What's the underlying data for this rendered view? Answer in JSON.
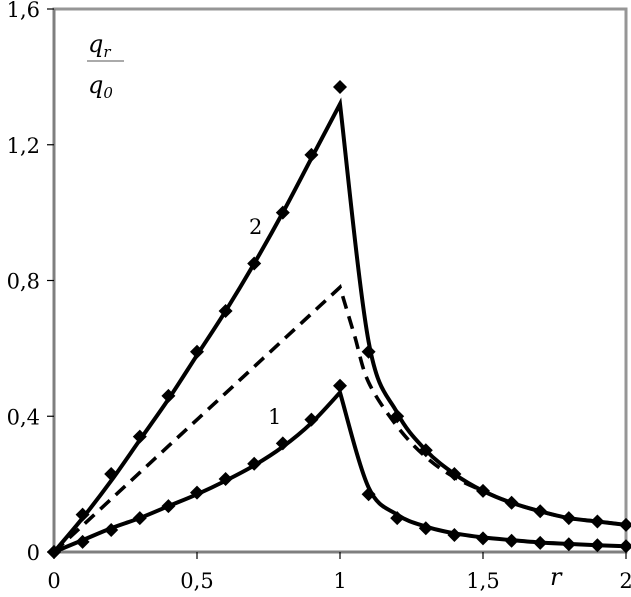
{
  "chart_data": {
    "type": "line",
    "title": "",
    "xlabel": "r",
    "ylabel": "q_r / q_0",
    "ylabel_numerator": "q",
    "ylabel_numerator_sub": "r",
    "ylabel_denominator": "q",
    "ylabel_denominator_sub": "0",
    "xlim": [
      0,
      2
    ],
    "ylim": [
      0,
      1.6
    ],
    "x_ticks": [
      0,
      0.5,
      1,
      1.5,
      2
    ],
    "x_tick_labels": [
      "0",
      "0,5",
      "1",
      "1,5",
      "2"
    ],
    "y_ticks": [
      0,
      0.4,
      0.8,
      1.2,
      1.6
    ],
    "y_tick_labels": [
      "0",
      "0,4",
      "0,8",
      "1,2",
      "1,6"
    ],
    "grid": false,
    "legend": "none (inline curve labels)",
    "annotations": [
      {
        "text": "1",
        "x": 0.75,
        "y": 0.4
      },
      {
        "text": "2",
        "x": 0.69,
        "y": 0.96
      }
    ],
    "series": [
      {
        "name": "2 (markers)",
        "style": "markers-diamond",
        "x": [
          0,
          0.1,
          0.2,
          0.3,
          0.4,
          0.5,
          0.6,
          0.7,
          0.8,
          0.9,
          1.0,
          1.1,
          1.2,
          1.3,
          1.4,
          1.5,
          1.6,
          1.7,
          1.8,
          1.9,
          2.0
        ],
        "values": [
          0,
          0.11,
          0.23,
          0.34,
          0.46,
          0.59,
          0.71,
          0.85,
          1.0,
          1.17,
          1.37,
          0.59,
          0.4,
          0.3,
          0.23,
          0.18,
          0.145,
          0.12,
          0.1,
          0.09,
          0.08
        ]
      },
      {
        "name": "2 (curve)",
        "style": "solid",
        "x": [
          0,
          0.1,
          0.2,
          0.3,
          0.4,
          0.5,
          0.6,
          0.7,
          0.8,
          0.9,
          1.0,
          1.1,
          1.2,
          1.3,
          1.4,
          1.5,
          1.6,
          1.7,
          1.8,
          1.9,
          2.0
        ],
        "values": [
          0,
          0.1,
          0.21,
          0.33,
          0.45,
          0.58,
          0.71,
          0.85,
          1.0,
          1.16,
          1.32,
          0.62,
          0.41,
          0.3,
          0.23,
          0.18,
          0.145,
          0.12,
          0.1,
          0.09,
          0.08
        ]
      },
      {
        "name": "1 (markers)",
        "style": "markers-diamond",
        "x": [
          0,
          0.1,
          0.2,
          0.3,
          0.4,
          0.5,
          0.6,
          0.7,
          0.8,
          0.9,
          1.0,
          1.1,
          1.2,
          1.3,
          1.4,
          1.5,
          1.6,
          1.7,
          1.8,
          1.9,
          2.0
        ],
        "values": [
          0,
          0.03,
          0.065,
          0.1,
          0.135,
          0.175,
          0.215,
          0.26,
          0.32,
          0.39,
          0.49,
          0.17,
          0.1,
          0.07,
          0.05,
          0.04,
          0.033,
          0.027,
          0.023,
          0.02,
          0.017
        ]
      },
      {
        "name": "1 (curve)",
        "style": "solid",
        "x": [
          0,
          0.1,
          0.2,
          0.3,
          0.4,
          0.5,
          0.6,
          0.7,
          0.8,
          0.9,
          1.0,
          1.1,
          1.2,
          1.3,
          1.4,
          1.5,
          1.6,
          1.7,
          1.8,
          1.9,
          2.0
        ],
        "values": [
          0,
          0.035,
          0.07,
          0.1,
          0.135,
          0.17,
          0.21,
          0.255,
          0.31,
          0.38,
          0.47,
          0.19,
          0.11,
          0.075,
          0.055,
          0.043,
          0.035,
          0.028,
          0.024,
          0.02,
          0.017
        ]
      },
      {
        "name": "dashed",
        "style": "dashed",
        "x": [
          0,
          0.2,
          0.4,
          0.6,
          0.8,
          1.0,
          1.05,
          1.1,
          1.2,
          1.3,
          1.4,
          1.5,
          1.6,
          1.7,
          1.8,
          1.9,
          2.0
        ],
        "values": [
          0,
          0.156,
          0.312,
          0.468,
          0.624,
          0.78,
          0.64,
          0.5,
          0.37,
          0.28,
          0.22,
          0.18,
          0.145,
          0.12,
          0.1,
          0.09,
          0.08
        ]
      }
    ]
  },
  "axes": {
    "x_label": "r",
    "y_label_num": "q",
    "y_label_num_sub": "r",
    "y_label_den": "q",
    "y_label_den_sub": "0"
  },
  "colors": {
    "plot_border": "#969696",
    "axis_line": "#7f7f7f",
    "series": "#000000",
    "background": "#ffffff"
  }
}
